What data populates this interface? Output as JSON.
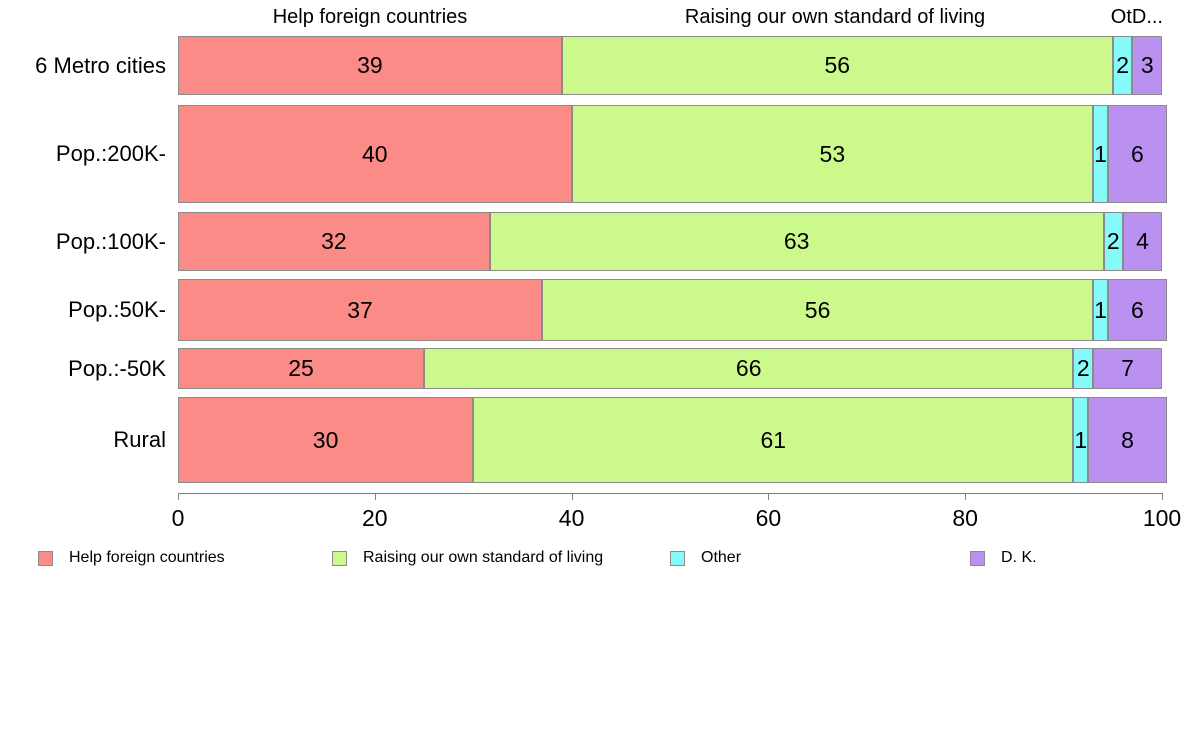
{
  "chart_data": {
    "type": "bar",
    "stacked": true,
    "orientation": "horizontal",
    "title": "",
    "categories": [
      "6 Metro cities",
      "Pop.:200K-",
      "Pop.:100K-",
      "Pop.:50K-",
      "Pop.:-50K",
      "Rural"
    ],
    "series": [
      {
        "name": "Help foreign countries",
        "color": "#FB8B86",
        "values": [
          39,
          40,
          32,
          37,
          25,
          30
        ]
      },
      {
        "name": "Raising our own standard of living",
        "color": "#CCF98B",
        "values": [
          56,
          53,
          63,
          56,
          66,
          61
        ]
      },
      {
        "name": "Other",
        "color": "#86F9F9",
        "values": [
          2,
          1,
          2,
          1,
          2,
          1
        ]
      },
      {
        "name": "D. K.",
        "color": "#BA90F1",
        "values": [
          3,
          6,
          4,
          6,
          7,
          8
        ]
      }
    ],
    "column_headers": [
      "Help foreign countries",
      "Raising our own standard of living",
      "OtD..."
    ],
    "x_ticks": [
      "0",
      "20",
      "40",
      "60",
      "80",
      "100"
    ],
    "xlim": [
      0,
      100
    ],
    "grid": false,
    "legend_position": "bottom",
    "legend": [
      "Help foreign countries",
      "Raising our own standard of living",
      "Other",
      "D. K."
    ]
  }
}
